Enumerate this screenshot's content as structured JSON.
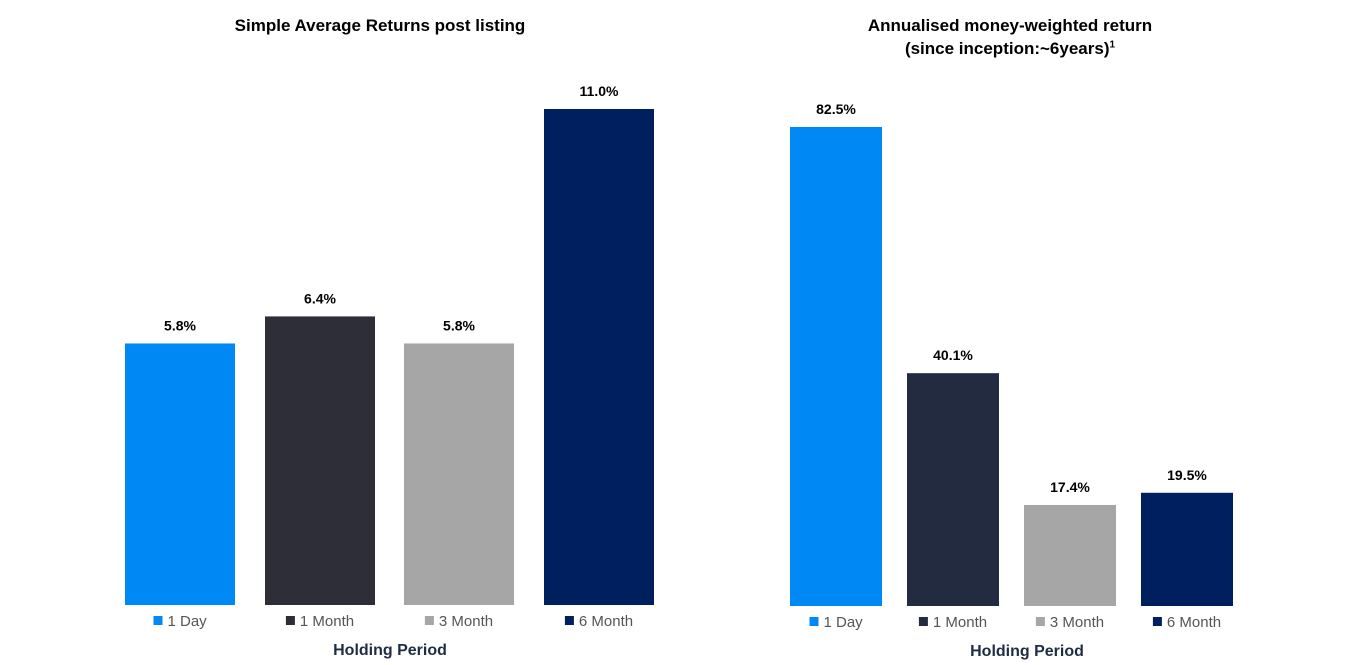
{
  "chart_data": [
    {
      "type": "bar",
      "title": "Simple Average Returns post listing",
      "xlabel": "Holding Period",
      "ylabel": "",
      "categories": [
        "1 Day",
        "1 Month",
        "3 Month",
        "6 Month"
      ],
      "values": [
        5.8,
        6.4,
        5.8,
        11.0
      ],
      "data_labels": [
        "5.8%",
        "6.4%",
        "5.8%",
        "11.0%"
      ],
      "colors": [
        "#0088f5",
        "#2e2e38",
        "#a6a6a6",
        "#001f5e"
      ],
      "ylim": [
        0,
        11.0
      ],
      "grid": false,
      "legend": "bottom"
    },
    {
      "type": "bar",
      "title": "Annualised money-weighted return",
      "subtitle": "(since inception:~6years)",
      "subtitle_sup": "1",
      "xlabel": "Holding Period",
      "ylabel": "",
      "categories": [
        "1 Day",
        "1 Month",
        "3 Month",
        "6 Month"
      ],
      "values": [
        82.5,
        40.1,
        17.4,
        19.5
      ],
      "data_labels": [
        "82.5%",
        "40.1%",
        "17.4%",
        "19.5%"
      ],
      "colors": [
        "#0088f5",
        "#222b40",
        "#a6a6a6",
        "#001f5e"
      ],
      "ylim": [
        0,
        82.5
      ],
      "grid": false,
      "legend": "bottom"
    }
  ]
}
